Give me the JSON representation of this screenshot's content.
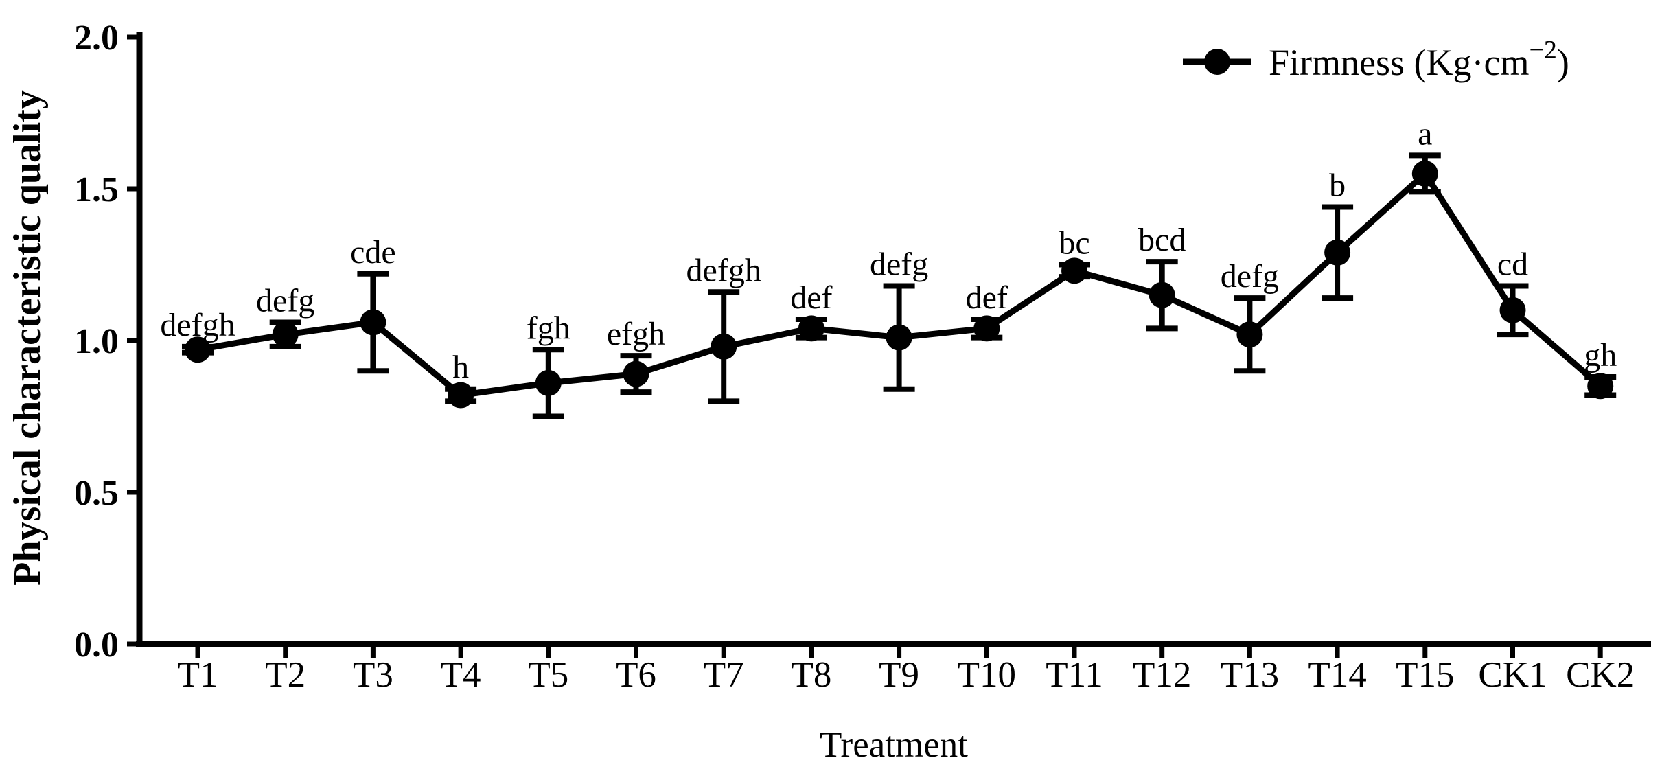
{
  "figure": {
    "background_color": "#ffffff",
    "ink_color": "#000000"
  },
  "chart_data": {
    "type": "line",
    "title": "",
    "xlabel": "Treatment",
    "ylabel": "Physical characteristic quality",
    "categories": [
      "T1",
      "T2",
      "T3",
      "T4",
      "T5",
      "T6",
      "T7",
      "T8",
      "T9",
      "T10",
      "T11",
      "T12",
      "T13",
      "T14",
      "T15",
      "CK1",
      "CK2"
    ],
    "series": [
      {
        "name": "Firmness (Kg·cm⁻²)",
        "marker": "filled-circle",
        "values": [
          0.97,
          1.02,
          1.06,
          0.82,
          0.86,
          0.89,
          0.98,
          1.04,
          1.01,
          1.04,
          1.23,
          1.15,
          1.02,
          1.29,
          1.55,
          1.1,
          0.85
        ],
        "errors": [
          0.01,
          0.04,
          0.16,
          0.02,
          0.11,
          0.06,
          0.18,
          0.03,
          0.17,
          0.03,
          0.02,
          0.11,
          0.12,
          0.15,
          0.06,
          0.08,
          0.03
        ],
        "sig_letters": [
          "defgh",
          "defg",
          "cde",
          "h",
          "fgh",
          "efgh",
          "defgh",
          "def",
          "defg",
          "def",
          "bc",
          "bcd",
          "defg",
          "b",
          "a",
          "cd",
          "gh"
        ]
      }
    ],
    "ylim": [
      0.0,
      2.0
    ],
    "y_ticks": [
      "0.0",
      "0.5",
      "1.0",
      "1.5",
      "2.0"
    ],
    "y_tick_values": [
      0.0,
      0.5,
      1.0,
      1.5,
      2.0
    ],
    "grid": "off",
    "legend_position": "top-right",
    "error_bars": "vertical-with-caps"
  },
  "legend": {
    "label_main": "Firmness (Kg·cm",
    "label_sup": "−2",
    "label_end": ")"
  }
}
